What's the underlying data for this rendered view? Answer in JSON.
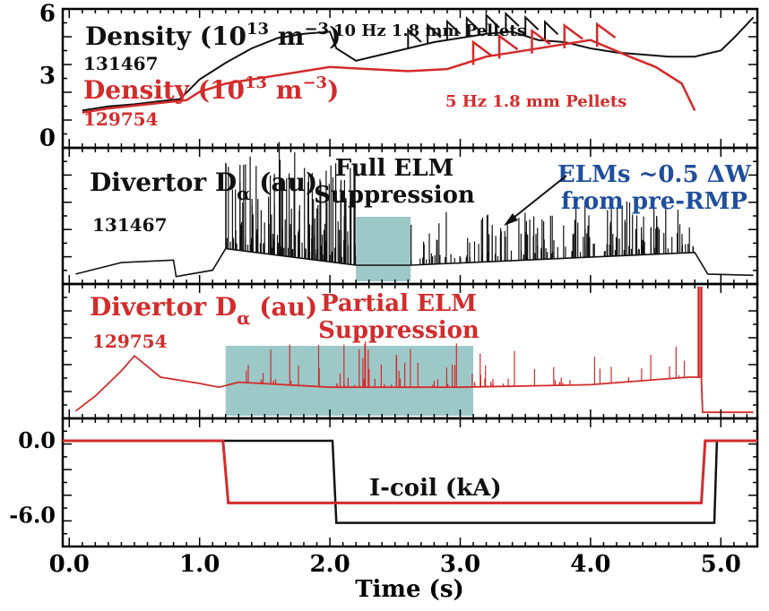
{
  "colors": {
    "black": "#111111",
    "red": "#d42b2b",
    "blue": "#1f4e9c",
    "shade": "#9cc8c8"
  },
  "chart_data": {
    "type": "line",
    "x_axis": {
      "label": "Time (s)",
      "range": [
        -0.05,
        5.28
      ],
      "ticks": [
        0.0,
        1.0,
        2.0,
        3.0,
        4.0,
        5.0
      ],
      "tick_labels": [
        "0.0",
        "1.0",
        "2.0",
        "3.0",
        "4.0",
        "5.0"
      ]
    },
    "panels": [
      {
        "id": "density",
        "y_range": [
          -0.5,
          6.2
        ],
        "y_ticks": [
          0,
          3,
          6
        ],
        "y_tick_labels": [
          "0",
          "3",
          "6"
        ],
        "labels": {
          "black_title_main": "Density (10",
          "black_title_exp": "13",
          "black_title_unit": " m",
          "black_title_unit_exp": "−3",
          "black_title_close": ")",
          "black_shot": "131467",
          "black_annotation": "10 Hz 1.8 mm Pellets",
          "red_title_main": "Density (10",
          "red_title_exp": "13",
          "red_title_unit": " m",
          "red_title_unit_exp": "−3",
          "red_title_close": ")",
          "red_shot": "129754",
          "red_annotation": "5 Hz 1.8 mm Pellets"
        },
        "series": [
          {
            "color": "black",
            "x": [
              0.1,
              0.3,
              0.5,
              0.7,
              0.85,
              1.0,
              1.2,
              1.4,
              1.6,
              1.8,
              2.0,
              2.05,
              2.2,
              2.4,
              2.6,
              2.8,
              3.0,
              3.2,
              3.4,
              3.6,
              3.8,
              4.0,
              4.2,
              4.4,
              4.6,
              4.8,
              5.0,
              5.1,
              5.25
            ],
            "y": [
              1.3,
              1.5,
              1.6,
              1.75,
              1.85,
              2.8,
              3.6,
              4.3,
              4.8,
              5.0,
              5.1,
              4.3,
              3.7,
              4.0,
              4.3,
              4.6,
              4.8,
              5.0,
              5.1,
              4.7,
              4.6,
              4.3,
              4.1,
              4.0,
              3.9,
              3.9,
              4.2,
              4.8,
              5.8
            ]
          },
          {
            "color": "red",
            "x": [
              0.1,
              0.3,
              0.6,
              0.9,
              1.0,
              1.2,
              1.5,
              1.8,
              2.0,
              2.3,
              2.6,
              2.9,
              3.0,
              3.2,
              3.5,
              3.8,
              4.0,
              4.3,
              4.5,
              4.7,
              4.8
            ],
            "y": [
              1.2,
              1.4,
              1.6,
              1.8,
              2.2,
              2.6,
              2.9,
              3.2,
              3.4,
              3.3,
              3.2,
              3.3,
              3.5,
              3.9,
              4.2,
              4.5,
              4.7,
              3.9,
              3.4,
              2.6,
              1.3
            ]
          }
        ],
        "pellet_jumps": {
          "black": [
            2.6,
            2.75,
            2.9,
            3.05,
            3.2,
            3.35,
            3.5,
            3.65
          ],
          "red": [
            3.1,
            3.3,
            3.55,
            3.8,
            4.05
          ]
        }
      },
      {
        "id": "dalpha_131467",
        "title_main": "Divertor D",
        "title_sub": "α",
        "title_unit": " (au)",
        "shot": "131467",
        "shaded_region": [
          2.2,
          2.62
        ],
        "shade_label": [
          "Full ELM",
          "Suppression"
        ],
        "annotation": [
          "ELMs ~0.5 ΔW",
          "from pre-RMP"
        ],
        "arrow_target_time": 3.25,
        "series_color": "black",
        "baseline_x": [
          0.05,
          0.4,
          0.8,
          0.82,
          1.1,
          1.2,
          2.2,
          2.62,
          4.8,
          4.9,
          5.25
        ],
        "baseline_y": [
          0.05,
          0.14,
          0.16,
          0.03,
          0.08,
          0.25,
          0.12,
          0.12,
          0.22,
          0.05,
          0.04
        ]
      },
      {
        "id": "dalpha_129754",
        "title_main": "Divertor D",
        "title_sub": "α",
        "title_unit": " (au)",
        "shot": "129754",
        "shaded_region": [
          1.2,
          3.1
        ],
        "shade_label": [
          "Partial ELM",
          "Suppression"
        ],
        "series_color": "red",
        "baseline_x": [
          0.05,
          0.2,
          0.4,
          0.5,
          0.7,
          1.0,
          1.15,
          1.3,
          2.0,
          3.0,
          4.0,
          4.75,
          4.85,
          4.86,
          5.25
        ],
        "baseline_y": [
          0.03,
          0.15,
          0.35,
          0.47,
          0.3,
          0.25,
          0.22,
          0.26,
          0.22,
          0.22,
          0.24,
          0.3,
          0.3,
          0.02,
          0.02
        ]
      },
      {
        "id": "icoil",
        "label": "I-coil (kA)",
        "y_range": [
          -8.5,
          1.8
        ],
        "y_ticks": [
          0.0,
          -6.0
        ],
        "y_tick_labels": [
          "0.0",
          "-6.0"
        ],
        "series": [
          {
            "color": "black",
            "x": [
              -0.05,
              2.02,
              2.05,
              4.95,
              4.97,
              5.28
            ],
            "y": [
              0.0,
              0.0,
              -6.6,
              -6.6,
              0.0,
              0.0
            ]
          },
          {
            "color": "red",
            "x": [
              -0.05,
              1.18,
              1.22,
              4.85,
              4.88,
              5.28
            ],
            "y": [
              0.0,
              0.0,
              -5.0,
              -5.0,
              0.0,
              0.0
            ]
          }
        ]
      }
    ]
  }
}
